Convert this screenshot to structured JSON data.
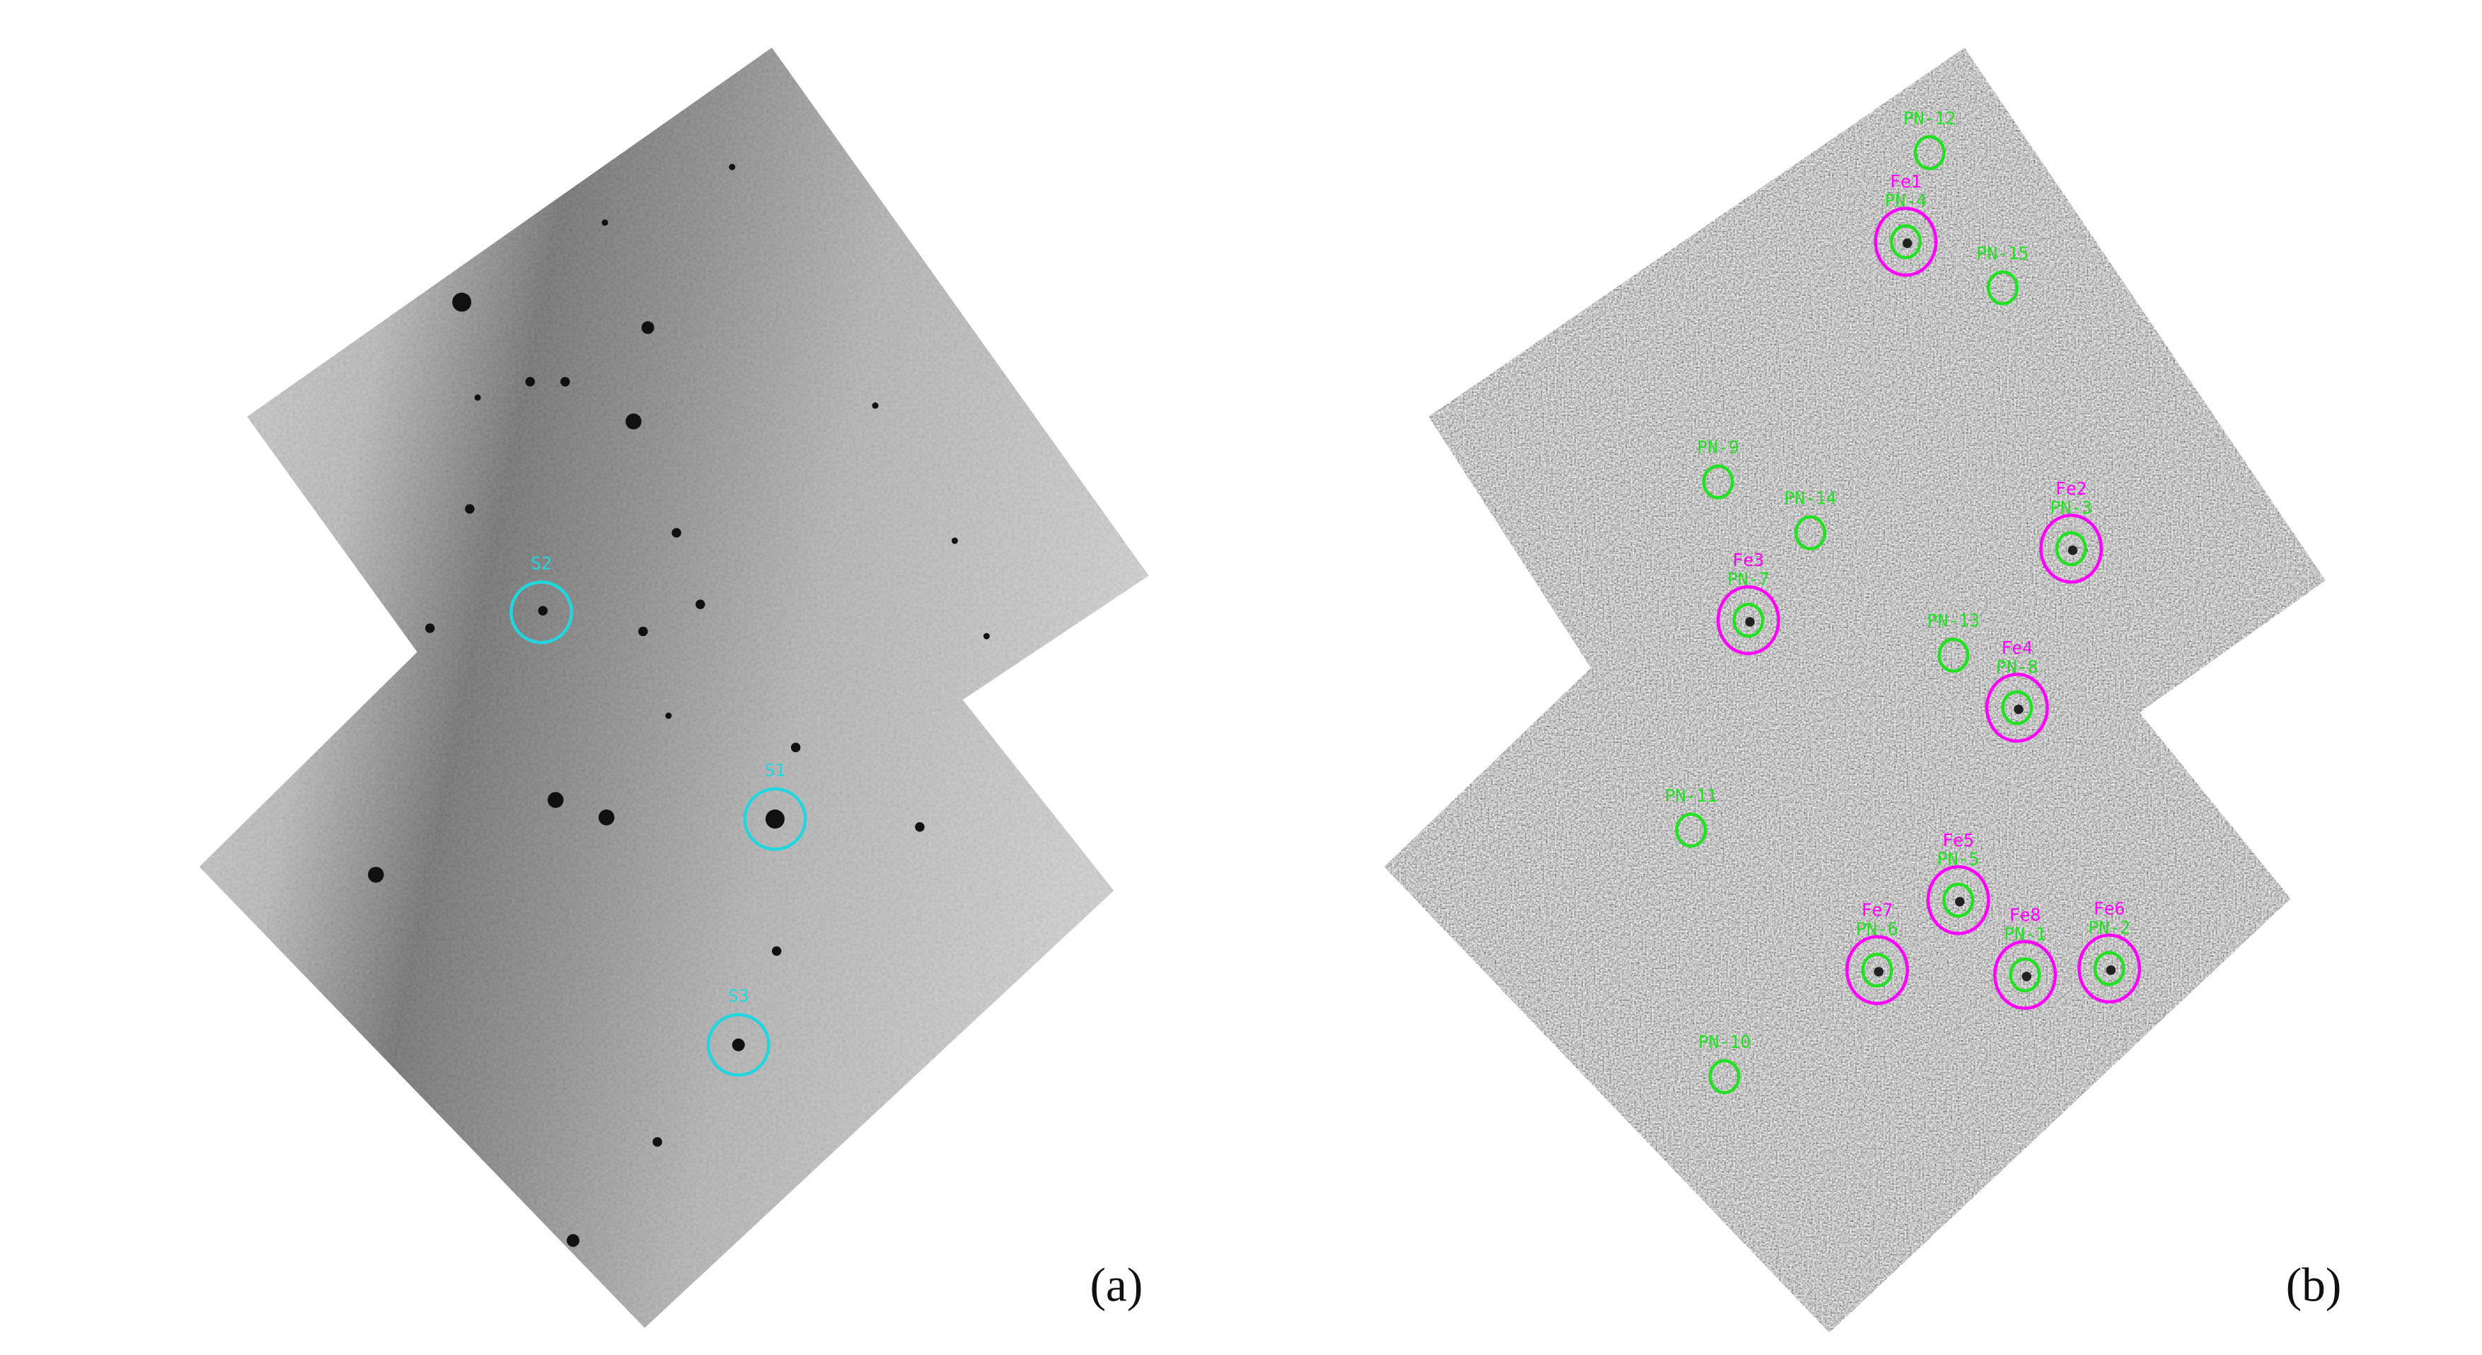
{
  "panels": [
    {
      "tag": "(a)",
      "marker_color": "#22d6e0",
      "markers": [
        {
          "id": "S2",
          "label": "S2"
        },
        {
          "id": "S1",
          "label": "S1"
        },
        {
          "id": "S3",
          "label": "S3"
        }
      ]
    },
    {
      "tag": "(b)",
      "pn_color": "#22e022",
      "fe_color": "#ff00ff",
      "markers": [
        {
          "id": "PN-12",
          "pn": "PN-12"
        },
        {
          "id": "PN-4",
          "pn": "PN-4",
          "fe": "Fe1"
        },
        {
          "id": "PN-15",
          "pn": "PN-15"
        },
        {
          "id": "PN-9",
          "pn": "PN-9"
        },
        {
          "id": "PN-14",
          "pn": "PN-14"
        },
        {
          "id": "PN-3",
          "pn": "PN-3",
          "fe": "Fe2"
        },
        {
          "id": "PN-7",
          "pn": "PN-7",
          "fe": "Fe3"
        },
        {
          "id": "PN-13",
          "pn": "PN-13"
        },
        {
          "id": "PN-8",
          "pn": "PN-8",
          "fe": "Fe4"
        },
        {
          "id": "PN-11",
          "pn": "PN-11"
        },
        {
          "id": "PN-5",
          "pn": "PN-5",
          "fe": "Fe5"
        },
        {
          "id": "PN-6",
          "pn": "PN-6",
          "fe": "Fe7"
        },
        {
          "id": "PN-1",
          "pn": "PN-1",
          "fe": "Fe8"
        },
        {
          "id": "PN-2",
          "pn": "PN-2",
          "fe": "Fe6"
        },
        {
          "id": "PN-10",
          "pn": "PN-10"
        }
      ]
    }
  ]
}
